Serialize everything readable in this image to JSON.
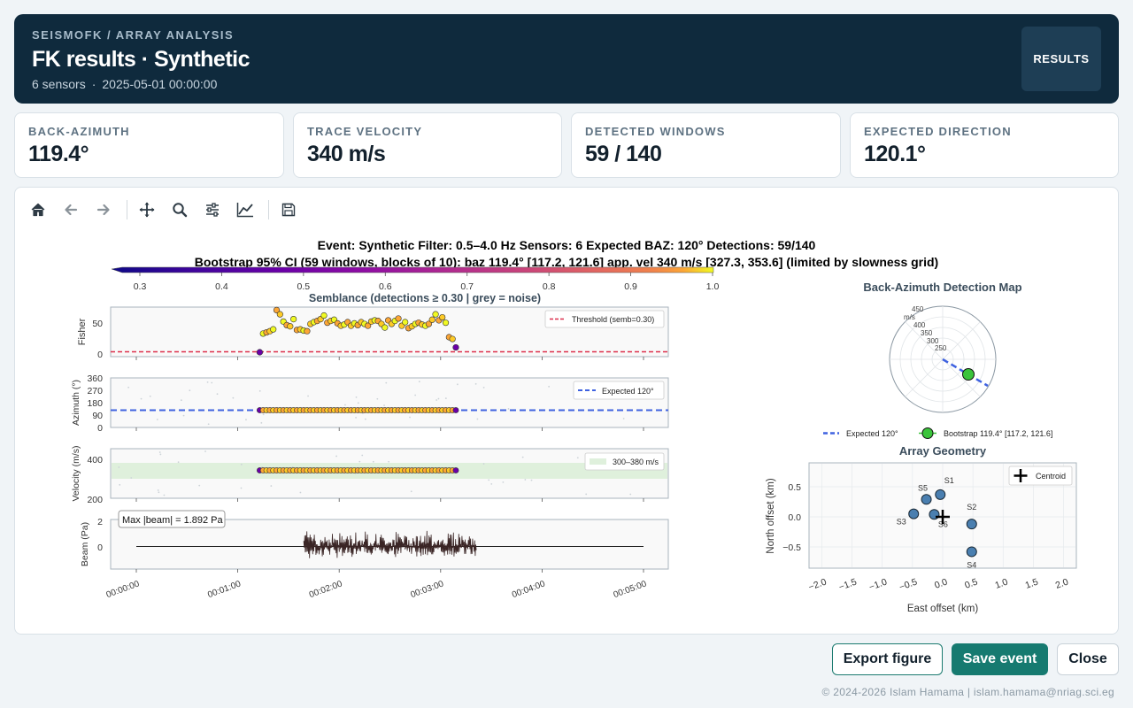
{
  "header": {
    "kicker": "SEISMOFK / ARRAY ANALYSIS",
    "title": "FK results · Synthetic",
    "sensors": "6 sensors",
    "separator": "·",
    "datetime": "2025-05-01 00:00:00",
    "results_button": "RESULTS"
  },
  "stats": [
    {
      "label": "BACK-AZIMUTH",
      "value": "119.4°"
    },
    {
      "label": "TRACE VELOCITY",
      "value": "340 m/s"
    },
    {
      "label": "DETECTED WINDOWS",
      "value": "59 / 140"
    },
    {
      "label": "EXPECTED DIRECTION",
      "value": "120.1°"
    }
  ],
  "toolbar": [
    "home-icon",
    "back-arrow-icon",
    "forward-arrow-icon",
    "pan-icon",
    "zoom-icon",
    "sliders-icon",
    "line-chart-icon",
    "save-icon"
  ],
  "figure": {
    "suptitle_line1": "Event: Synthetic    Filter: 0.5–4.0 Hz    Sensors: 6    Expected BAZ: 120°    Detections: 59/140",
    "suptitle_line2": "Bootstrap 95% CI (59 windows, blocks of 10):   baz 119.4° [117.2, 121.6]    app. vel 340 m/s [327.3, 353.6]  (limited by slowness grid)",
    "colorbar_label": "Semblance  (detections ≥ 0.30  |  grey = noise)",
    "colorbar_ticks": [
      "0.3",
      "0.4",
      "0.5",
      "0.6",
      "0.7",
      "0.8",
      "0.9",
      "1.0"
    ],
    "polar_title": "Back-Azimuth Detection Map",
    "array_title": "Array Geometry",
    "legend_expected": "Expected 120°",
    "legend_bootstrap": "Bootstrap 119.4° [117.2, 121.6]",
    "legend_centroid": "Centroid",
    "legend_threshold": "Threshold (semb=0.30)",
    "legend_expected_az": "Expected  120°",
    "legend_vel_band": "300–380 m/s",
    "beam_label": "Max |beam| = 1.892 Pa",
    "polar_unit": "m/s",
    "polar_rings": [
      "450",
      "400",
      "350",
      "300",
      "250"
    ]
  },
  "chart_data": [
    {
      "type": "scatter",
      "title": "",
      "ylabel": "Fisher",
      "yticks": [
        "50",
        "0"
      ],
      "threshold_label": "Threshold (semb=0.30)",
      "x_labels": [
        "00:00:00",
        "00:01:00",
        "00:02:00",
        "00:03:00",
        "00:04:00",
        "00:05:00"
      ],
      "x_seconds": [
        73,
        75,
        77,
        79,
        81,
        83,
        85,
        87,
        89,
        91,
        93,
        95,
        97,
        99,
        101,
        103,
        105,
        107,
        109,
        111,
        113,
        115,
        117,
        119,
        121,
        123,
        125,
        127,
        129,
        131,
        133,
        135,
        137,
        139,
        141,
        143,
        145,
        147,
        149,
        151,
        153,
        155,
        157,
        159,
        161,
        163,
        165,
        167,
        169,
        171,
        173,
        175,
        177,
        179,
        181,
        183,
        185,
        187,
        189
      ],
      "values": [
        0,
        31,
        33,
        35,
        38,
        70,
        63,
        51,
        45,
        43,
        55,
        37,
        38,
        36,
        35,
        47,
        50,
        52,
        55,
        61,
        49,
        52,
        54,
        48,
        44,
        46,
        50,
        44,
        48,
        45,
        50,
        47,
        44,
        51,
        53,
        52,
        47,
        41,
        53,
        47,
        52,
        56,
        44,
        50,
        40,
        43,
        47,
        49,
        46,
        44,
        47,
        54,
        63,
        53,
        58,
        49,
        25,
        22,
        8
      ]
    },
    {
      "type": "scatter",
      "ylabel": "Azimuth (°)",
      "yticks": [
        "360",
        "270",
        "180",
        "90",
        "0"
      ],
      "ylim": [
        0,
        360
      ],
      "expected": 120,
      "value": 120
    },
    {
      "type": "scatter",
      "ylabel": "Velocity (m/s)",
      "yticks": [
        "400",
        "200"
      ],
      "band": [
        300,
        380
      ],
      "value": 340
    },
    {
      "type": "line",
      "ylabel": "Beam (Pa)",
      "yticks": [
        "2",
        "0"
      ],
      "max_abs": 1.892
    },
    {
      "type": "scatter",
      "title": "Array Geometry",
      "xlabel": "East offset  (km)",
      "ylabel": "North offset  (km)",
      "xticks": [
        "−2.0",
        "−1.5",
        "−1.0",
        "−0.5",
        "0.0",
        "0.5",
        "1.0",
        "1.5",
        "2.0"
      ],
      "yticks": [
        "0.5",
        "0.0",
        "−0.5"
      ],
      "sensors": [
        {
          "name": "S1",
          "x": -0.04,
          "y": 0.37
        },
        {
          "name": "S2",
          "x": 0.48,
          "y": -0.12
        },
        {
          "name": "S3",
          "x": -0.48,
          "y": 0.05
        },
        {
          "name": "S4",
          "x": 0.48,
          "y": -0.58
        },
        {
          "name": "S5",
          "x": -0.27,
          "y": 0.29
        },
        {
          "name": "S6",
          "x": -0.14,
          "y": 0.04
        }
      ],
      "centroid": {
        "x": 0.0,
        "y": 0.0
      }
    }
  ],
  "actions": {
    "export": "Export figure",
    "save": "Save event",
    "close": "Close"
  },
  "footer": "© 2024-2026 Islam Hamama  |  islam.hamama@nriag.sci.eg"
}
